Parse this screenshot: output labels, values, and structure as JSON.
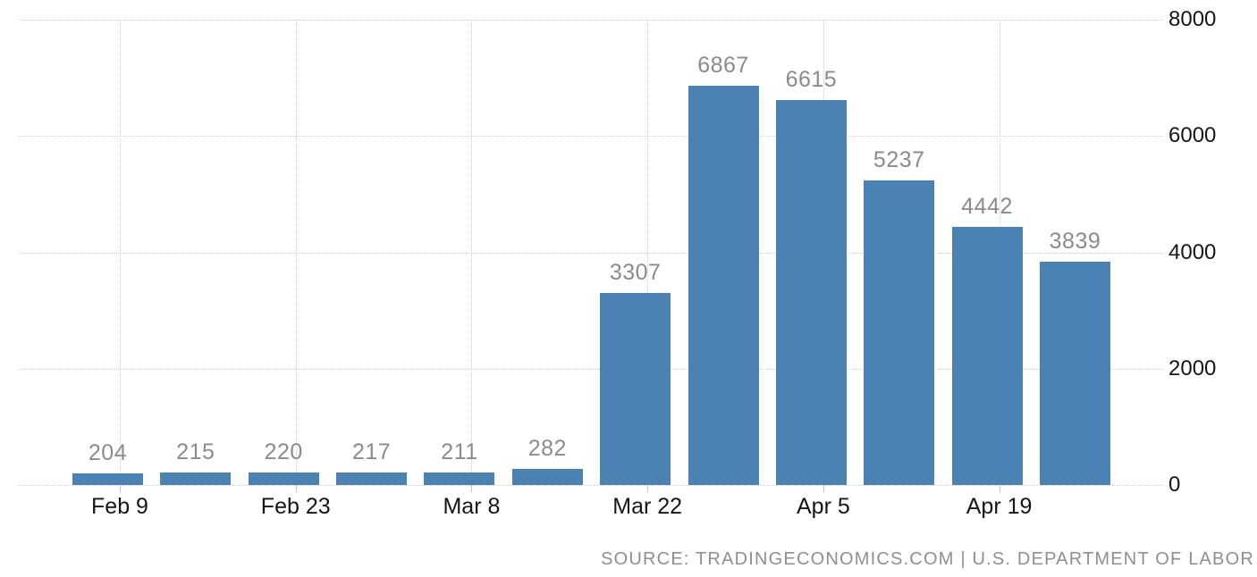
{
  "chart_data": {
    "type": "bar",
    "title": "",
    "xlabel": "",
    "ylabel": "",
    "values": [
      204,
      215,
      220,
      217,
      211,
      282,
      3307,
      6867,
      6615,
      5237,
      4442,
      3839
    ],
    "value_labels": [
      "204",
      "215",
      "220",
      "217",
      "211",
      "282",
      "3307",
      "6867",
      "6615",
      "5237",
      "4442",
      "3839"
    ],
    "x_tick_labels": [
      "Feb 9",
      "Feb 23",
      "Mar 8",
      "Mar 22",
      "Apr 5",
      "Apr 19"
    ],
    "x_tick_label_every_n_bars": 2,
    "y_tick_labels": [
      "0",
      "2000",
      "4000",
      "6000",
      "8000"
    ],
    "y_ticks": [
      0,
      2000,
      4000,
      6000,
      8000
    ],
    "ylim": [
      0,
      8000
    ],
    "grid": "dotted",
    "legend": "none",
    "y_axis_side": "right",
    "colors": {
      "bar_fill": "#4a82b4",
      "value_label": "#8b8b8b",
      "axis_label": "#161616",
      "gridline": "#d0d0d0",
      "source_text": "#8f8f8f",
      "background": "#ffffff"
    }
  },
  "footer": {
    "source_text": "SOURCE: TRADINGECONOMICS.COM | U.S. DEPARTMENT OF LABOR"
  }
}
